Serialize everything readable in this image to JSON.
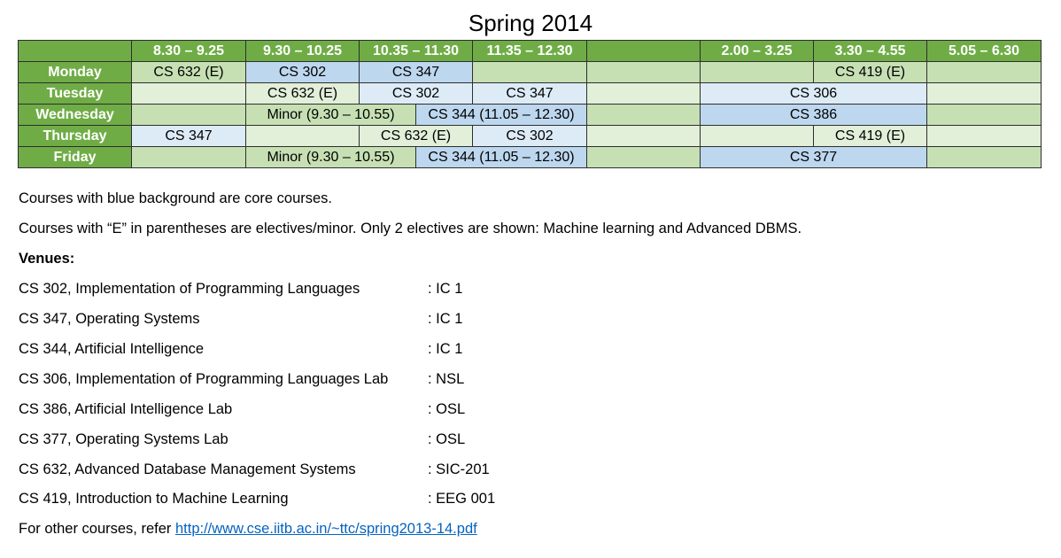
{
  "title": "Spring 2014",
  "header": [
    "",
    "8.30 – 9.25",
    "9.30 – 10.25",
    "10.35 – 11.30",
    "11.35 – 12.30",
    "",
    "2.00 – 3.25",
    "3.30 – 4.55",
    "5.05 – 6.30"
  ],
  "days": [
    "Monday",
    "Tuesday",
    "Wednesday",
    "Thursday",
    "Friday"
  ],
  "rows": [
    [
      {
        "text": "CS 632 (E)",
        "span": 1,
        "color": "g1"
      },
      {
        "text": "CS 302",
        "span": 1,
        "color": "b1"
      },
      {
        "text": "CS 347",
        "span": 1,
        "color": "b1"
      },
      {
        "text": "",
        "span": 1,
        "color": "g1"
      },
      {
        "text": "",
        "span": 1,
        "color": "g1"
      },
      {
        "text": "",
        "span": 1,
        "color": "g1"
      },
      {
        "text": "CS 419 (E)",
        "span": 1,
        "color": "g1"
      },
      {
        "text": "",
        "span": 1,
        "color": "g1"
      }
    ],
    [
      {
        "text": "",
        "span": 1,
        "color": "g2"
      },
      {
        "text": "CS 632 (E)",
        "span": 1,
        "color": "g2"
      },
      {
        "text": "CS 302",
        "span": 1,
        "color": "b2"
      },
      {
        "text": "CS 347",
        "span": 1,
        "color": "b2"
      },
      {
        "text": "",
        "span": 1,
        "color": "g2"
      },
      {
        "text": "CS 306",
        "span": 2,
        "color": "b2"
      },
      {
        "text": "",
        "span": 1,
        "color": "g2"
      }
    ],
    [
      {
        "text": "",
        "span": 1,
        "color": "g1"
      },
      {
        "text": "Minor (9.30 – 10.55)",
        "span": 1.5,
        "color": "g1"
      },
      {
        "text": "CS 344 (11.05 – 12.30)",
        "span": 1.5,
        "color": "b1"
      },
      {
        "text": "",
        "span": 1,
        "color": "g1"
      },
      {
        "text": "CS 386",
        "span": 2,
        "color": "b1"
      },
      {
        "text": "",
        "span": 1,
        "color": "g1"
      }
    ],
    [
      {
        "text": "CS 347",
        "span": 1,
        "color": "b2"
      },
      {
        "text": "",
        "span": 1,
        "color": "g2"
      },
      {
        "text": "CS 632 (E)",
        "span": 1,
        "color": "g2"
      },
      {
        "text": "CS 302",
        "span": 1,
        "color": "b2"
      },
      {
        "text": "",
        "span": 1,
        "color": "g2"
      },
      {
        "text": "",
        "span": 1,
        "color": "g2"
      },
      {
        "text": "CS 419 (E)",
        "span": 1,
        "color": "g2"
      },
      {
        "text": "",
        "span": 1,
        "color": "g2"
      }
    ],
    [
      {
        "text": "",
        "span": 1,
        "color": "g1"
      },
      {
        "text": "Minor (9.30 – 10.55)",
        "span": 1.5,
        "color": "g1"
      },
      {
        "text": "CS 344 (11.05 – 12.30)",
        "span": 1.5,
        "color": "b1"
      },
      {
        "text": "",
        "span": 1,
        "color": "g1"
      },
      {
        "text": "CS 377",
        "span": 2,
        "color": "b1"
      },
      {
        "text": "",
        "span": 1,
        "color": "g1"
      }
    ]
  ],
  "notes": {
    "core": "Courses with blue background are core courses.",
    "electives": "Courses with “E” in parentheses are electives/minor. Only 2 electives are shown: Machine learning and Advanced DBMS.",
    "venues_heading": "Venues:",
    "venues": [
      {
        "course": "CS 302, Implementation of Programming Languages",
        "venue": ": IC 1"
      },
      {
        "course": "CS 347, Operating Systems",
        "venue": ": IC 1"
      },
      {
        "course": "CS 344, Artificial Intelligence",
        "venue": ": IC 1"
      },
      {
        "course": "CS 306, Implementation of Programming Languages Lab",
        "venue": ": NSL"
      },
      {
        "course": "CS 386, Artificial Intelligence Lab",
        "venue": ": OSL"
      },
      {
        "course": "CS 377, Operating Systems Lab",
        "venue": ": OSL"
      },
      {
        "course": "CS 632, Advanced Database Management Systems",
        "venue": ": SIC-201"
      },
      {
        "course": "CS 419, Introduction to Machine Learning",
        "venue": ": EEG 001"
      }
    ],
    "other_prefix": "For other courses, refer ",
    "other_link": "http://www.cse.iitb.ac.in/~ttc/spring2013-14.pdf"
  }
}
